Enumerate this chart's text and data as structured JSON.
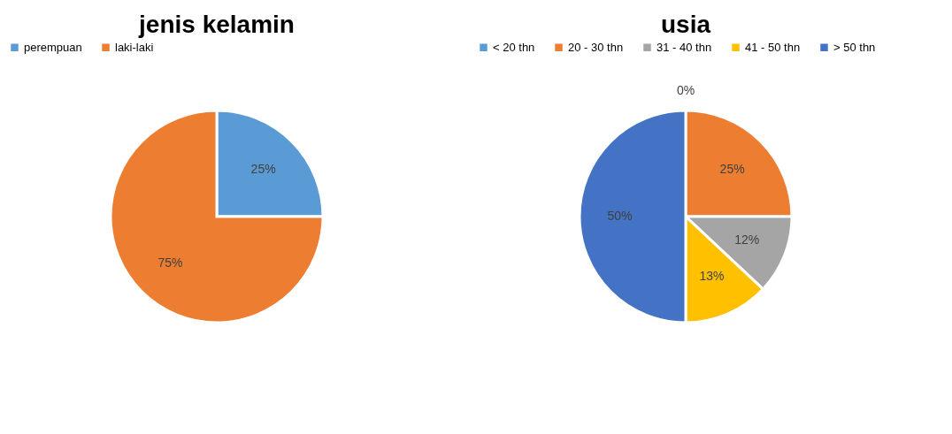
{
  "chart_data": [
    {
      "type": "pie",
      "title": "jenis kelamin",
      "categories": [
        "perempuan",
        "laki-laki"
      ],
      "values": [
        25,
        75
      ],
      "colors": [
        "#5b9bd5",
        "#ed7d31"
      ],
      "value_labels": [
        "25%",
        "75%"
      ],
      "legend": "top"
    },
    {
      "type": "pie",
      "title": "usia",
      "categories": [
        "< 20 thn",
        "20 - 30 thn",
        "31 - 40 thn",
        "41 - 50 thn",
        "> 50 thn"
      ],
      "values": [
        0,
        25,
        12,
        13,
        50
      ],
      "colors": [
        "#5b9bd5",
        "#ed7d31",
        "#a5a5a5",
        "#ffc000",
        "#4472c4"
      ],
      "value_labels": [
        "0%",
        "25%",
        "12%",
        "13%",
        "50%"
      ],
      "legend": "top"
    }
  ]
}
